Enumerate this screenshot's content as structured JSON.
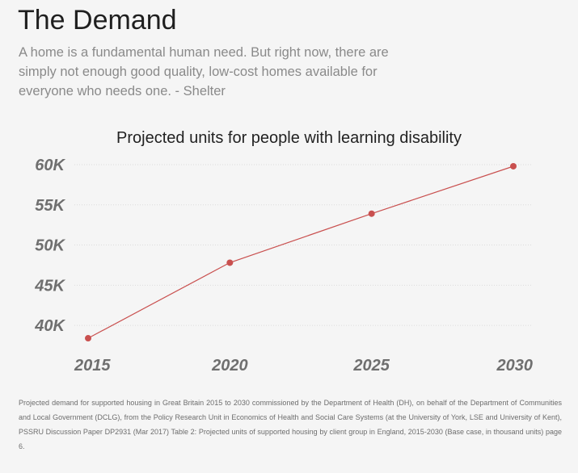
{
  "header": {
    "title": "The Demand",
    "intro": "A home is a fundamental human need. But right now, there are simply not enough good quality, low-cost homes available for everyone who needs one. - Shelter"
  },
  "chart_data": {
    "type": "line",
    "title": "Projected units for people with learning disability",
    "xlabel": "",
    "ylabel": "",
    "x": [
      2015,
      2020,
      2025,
      2030
    ],
    "x_tick_labels": [
      "2015",
      "2020",
      "2025",
      "2030"
    ],
    "series": [
      {
        "values": [
          38.4,
          47.8,
          53.9,
          59.8
        ]
      }
    ],
    "y_ticks": [
      40,
      45,
      50,
      55,
      60
    ],
    "y_tick_labels": [
      "40K",
      "45K",
      "50K",
      "55K",
      "60K"
    ],
    "ylim": [
      37.7,
      60.2
    ],
    "xlim": [
      2015,
      2030
    ],
    "grid": true,
    "legend": "none",
    "colors": {
      "line": "#c9504f",
      "marker": "#c9504f",
      "grid": "#dcdcdc",
      "tick_label": "#6f6f6f"
    }
  },
  "footnote": "Projected demand for supported housing in Great Britain 2015 to 2030 commissioned by the Department of Health (DH), on behalf of the Department of Communities and Local Government (DCLG), from the Policy Research Unit in Economics of Health and Social Care Systems (at the University of York, LSE and University of Kent), PSSRU Discussion Paper DP2931 (Mar 2017) Table 2: Projected units of supported housing by client group in England, 2015-2030 (Base case, in thousand units) page 6."
}
